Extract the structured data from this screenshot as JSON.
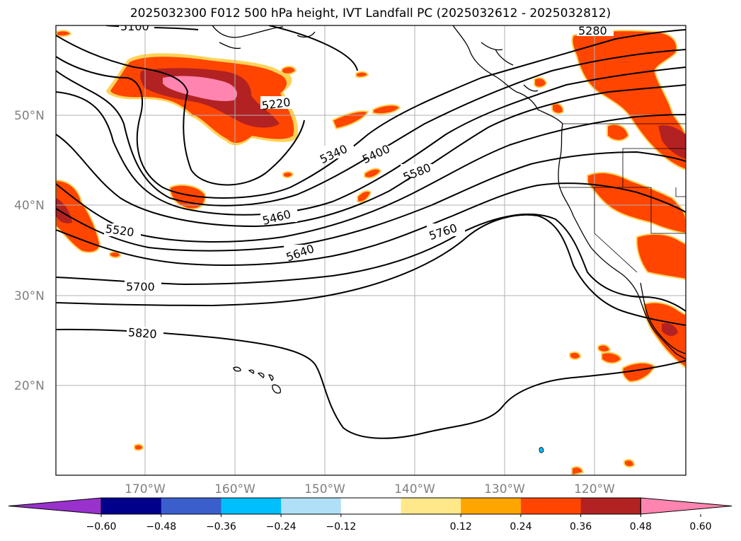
{
  "title": "2025032300 F012 500 hPa height, IVT Landfall PC (2025032612 - 2025032812)",
  "lat_labels": [
    "50°N",
    "40°N",
    "30°N",
    "20°N"
  ],
  "lon_labels": [
    "170°W",
    "160°W",
    "150°W",
    "140°W",
    "130°W",
    "120°W"
  ],
  "contour_labels": [
    "5100",
    "5220",
    "5280",
    "5340",
    "5400",
    "5460",
    "5520",
    "5580",
    "5640",
    "5700",
    "5760",
    "5820"
  ],
  "colorbar": {
    "ticks": [
      "−0.60",
      "−0.48",
      "−0.36",
      "−0.24",
      "−0.12",
      "0.12",
      "0.24",
      "0.36",
      "0.48",
      "0.60"
    ],
    "colors": [
      "#9932cc",
      "#00008b",
      "#3a5fcd",
      "#00bfff",
      "#b0e0f8",
      "#ffffff",
      "#ffe88a",
      "#ffa500",
      "#ff4500",
      "#b22222",
      "#ff85b0"
    ]
  }
}
